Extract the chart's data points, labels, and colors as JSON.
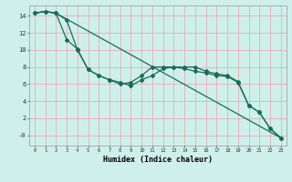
{
  "title": "",
  "xlabel": "Humidex (Indice chaleur)",
  "bg_color": "#cff0ea",
  "line_color": "#1a6b5a",
  "grid_color": "#e8a0a8",
  "xlim": [
    -0.5,
    23.5
  ],
  "ylim": [
    -1.2,
    15.2
  ],
  "xticks": [
    0,
    1,
    2,
    3,
    4,
    5,
    6,
    7,
    8,
    9,
    10,
    11,
    12,
    13,
    14,
    15,
    16,
    17,
    18,
    19,
    20,
    21,
    22,
    23
  ],
  "yticks": [
    0,
    2,
    4,
    6,
    8,
    10,
    12,
    14
  ],
  "ytick_labels": [
    "-0",
    "2",
    "4",
    "6",
    "8",
    "10",
    "12",
    "14"
  ],
  "line1_x": [
    0,
    1,
    2,
    3,
    4,
    5,
    6,
    7,
    8,
    9,
    10,
    11,
    12,
    13,
    14,
    15,
    16,
    17,
    18,
    19,
    20,
    21,
    22,
    23
  ],
  "line1_y": [
    14.3,
    14.5,
    14.3,
    13.5,
    10.0,
    7.7,
    7.0,
    6.5,
    6.2,
    5.8,
    6.5,
    7.0,
    7.8,
    8.0,
    8.0,
    8.0,
    7.5,
    7.2,
    7.0,
    6.3,
    3.5,
    2.7,
    0.8,
    -0.3
  ],
  "line2_x": [
    0,
    1,
    2,
    3,
    4,
    5,
    6,
    7,
    8,
    9,
    10,
    11,
    12,
    13,
    14,
    15,
    16,
    17,
    18,
    19,
    20,
    21,
    22,
    23
  ],
  "line2_y": [
    14.3,
    14.5,
    14.3,
    11.2,
    10.1,
    7.7,
    7.0,
    6.5,
    6.0,
    6.2,
    7.0,
    8.0,
    8.0,
    8.0,
    7.8,
    7.5,
    7.3,
    7.0,
    6.9,
    6.2,
    3.5,
    2.7,
    0.8,
    -0.3
  ],
  "line3_x": [
    0,
    1,
    2,
    23
  ],
  "line3_y": [
    14.3,
    14.5,
    14.3,
    -0.3
  ]
}
